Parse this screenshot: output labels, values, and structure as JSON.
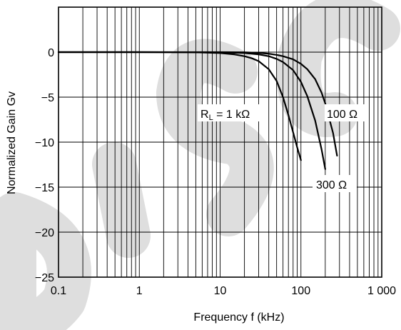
{
  "chart_data": {
    "type": "line",
    "xlabel": "Frequency  f (kHz)",
    "ylabel": "Normalized Gain  Gv",
    "xscale": "log",
    "xlim": [
      0.1,
      1000
    ],
    "ylim": [
      -25,
      5
    ],
    "grid": true,
    "x_tick_labels": [
      "0.1",
      "1",
      "10",
      "100",
      "1 000"
    ],
    "x_tick_values": [
      0.1,
      1,
      10,
      100,
      1000
    ],
    "y_tick_labels": [
      "0",
      "−5",
      "−10",
      "−15",
      "−20",
      "−25"
    ],
    "y_tick_values": [
      0,
      -5,
      -10,
      -15,
      -20,
      -25
    ],
    "series": [
      {
        "name": "RL = 1 kΩ",
        "x": [
          0.1,
          1,
          5,
          10,
          15,
          20,
          25,
          30,
          40,
          50,
          60,
          70,
          80,
          90,
          100
        ],
        "y": [
          0,
          0,
          -0.02,
          -0.1,
          -0.25,
          -0.45,
          -0.7,
          -1.0,
          -1.9,
          -3.2,
          -5.0,
          -7.0,
          -8.9,
          -10.6,
          -12.0
        ]
      },
      {
        "name": "300 Ω",
        "x": [
          0.1,
          1,
          10,
          20,
          30,
          40,
          50,
          60,
          80,
          100,
          120,
          150,
          180,
          200
        ],
        "y": [
          0,
          0,
          -0.02,
          -0.1,
          -0.25,
          -0.45,
          -0.75,
          -1.1,
          -2.0,
          -3.3,
          -4.9,
          -7.6,
          -10.8,
          -13.0
        ]
      },
      {
        "name": "100 Ω",
        "x": [
          0.1,
          1,
          10,
          20,
          30,
          40,
          50,
          60,
          80,
          100,
          120,
          150,
          180,
          200,
          250,
          280
        ],
        "y": [
          0,
          0,
          0,
          -0.02,
          -0.08,
          -0.18,
          -0.3,
          -0.45,
          -0.8,
          -1.3,
          -1.9,
          -3.0,
          -4.5,
          -5.7,
          -9.0,
          -11.5
        ]
      }
    ],
    "annotations": [
      {
        "id": "rl",
        "text_main": "R",
        "text_sub": "L",
        "text_rest": " = 1 kΩ"
      },
      {
        "id": "r100",
        "text": "100 Ω"
      },
      {
        "id": "r300",
        "text": "300 Ω"
      }
    ]
  },
  "watermark_text": "DISCONTINUED"
}
